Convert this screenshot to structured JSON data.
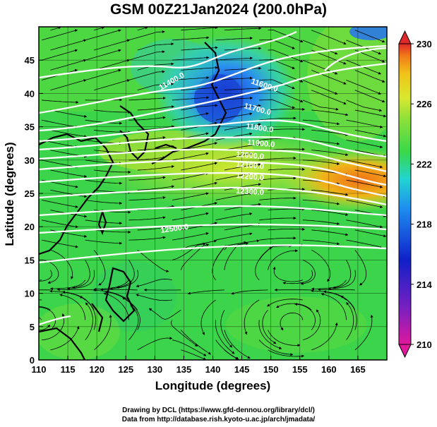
{
  "title": "GSM 00Z21Jan2024 (200.0hPa)",
  "xlabel": "Longitude (degrees)",
  "ylabel": "Latitude  (degrees)",
  "credits": [
    "Drawing by DCL (https://www.gfd-dennou.org/library/dcl/)",
    "Data from http://database.rish.kyoto-u.ac.jp/arch/jmadata/"
  ],
  "x_ticks": [
    "110",
    "115",
    "120",
    "125",
    "130",
    "135",
    "140",
    "145",
    "150",
    "155",
    "160",
    "165"
  ],
  "y_ticks": [
    "0",
    "5",
    "10",
    "15",
    "20",
    "25",
    "30",
    "35",
    "40",
    "45"
  ],
  "colorbar": {
    "ticks": [
      "210",
      "214",
      "218",
      "222",
      "226",
      "230"
    ],
    "colors": [
      "#e0189c",
      "#1020c8",
      "#1e8cf0",
      "#22d4d0",
      "#38d84a",
      "#8ee03a",
      "#d8e830",
      "#f0c418",
      "#f07a18",
      "#e02828"
    ]
  },
  "contours": [
    {
      "label": "11400.0"
    },
    {
      "label": "11600.0"
    },
    {
      "label": "11700.0"
    },
    {
      "label": "11800.0"
    },
    {
      "label": "11900.0"
    },
    {
      "label": "12000.0"
    },
    {
      "label": "12100.0"
    },
    {
      "label": "12200.0"
    },
    {
      "label": "12300.0"
    },
    {
      "label": "12500.0"
    }
  ],
  "map_extent": {
    "lon": [
      110,
      170
    ],
    "lat": [
      0,
      50
    ]
  }
}
